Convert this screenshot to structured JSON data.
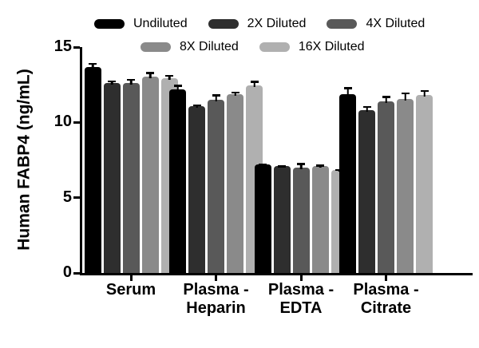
{
  "figure": {
    "background": "#ffffff",
    "axis_color": "#000000",
    "text_color": "#000000"
  },
  "legend": {
    "rows": [
      [
        "Undiluted",
        "2X Diluted",
        "4X Diluted"
      ],
      [
        "8X Diluted",
        "16X Diluted"
      ]
    ]
  },
  "chart_data": {
    "type": "bar",
    "title": "",
    "xlabel": "",
    "ylabel": "Human FABP4 (ng/mL)",
    "ylim": [
      0,
      15
    ],
    "yticks": [
      0,
      5,
      10,
      15
    ],
    "grid": false,
    "legend_position": "top",
    "error_bars": "upper whiskers with caps, black",
    "categories": [
      "Serum",
      "Plasma - Heparin",
      "Plasma - EDTA",
      "Plasma - Citrate"
    ],
    "categories_display": [
      [
        "Serum"
      ],
      [
        "Plasma -",
        "Heparin"
      ],
      [
        "Plasma -",
        "EDTA"
      ],
      [
        "Plasma -",
        "Citrate"
      ]
    ],
    "series": [
      {
        "name": "Undiluted",
        "color": "#000000",
        "values": [
          13.7,
          12.2,
          7.2,
          11.9
        ],
        "errors": [
          0.25,
          0.3,
          0.05,
          0.45
        ]
      },
      {
        "name": "2X Diluted",
        "color": "#2e2e2e",
        "values": [
          12.6,
          11.1,
          7.1,
          10.8
        ],
        "errors": [
          0.2,
          0.1,
          0.05,
          0.3
        ]
      },
      {
        "name": "4X Diluted",
        "color": "#595959",
        "values": [
          12.6,
          11.5,
          7.0,
          11.4
        ],
        "errors": [
          0.3,
          0.35,
          0.3,
          0.35
        ]
      },
      {
        "name": "8X Diluted",
        "color": "#8a8a8a",
        "values": [
          13.05,
          11.85,
          7.1,
          11.55
        ],
        "errors": [
          0.3,
          0.2,
          0.1,
          0.45
        ]
      },
      {
        "name": "16X Diluted",
        "color": "#b0b0b0",
        "values": [
          12.95,
          12.45,
          6.85,
          11.8
        ],
        "errors": [
          0.2,
          0.3,
          0.05,
          0.35
        ]
      }
    ]
  }
}
